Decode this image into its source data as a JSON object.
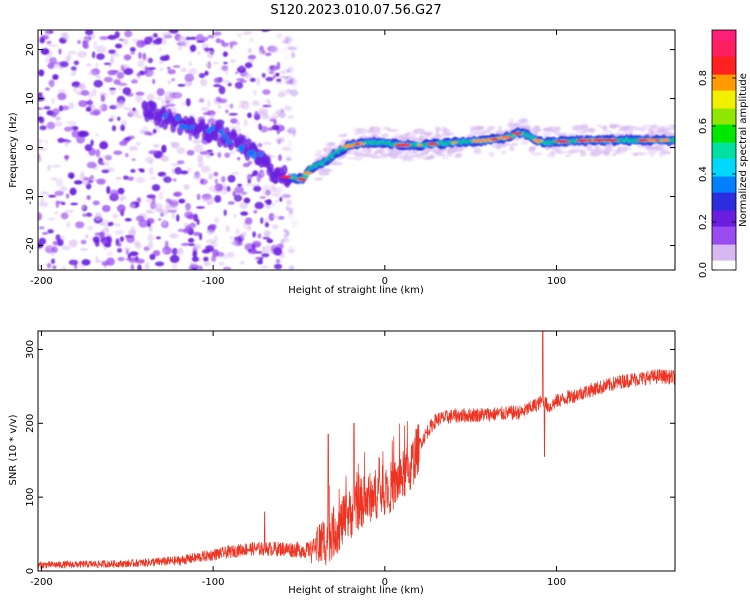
{
  "title": "S120.2023.010.07.56.G27",
  "colors": {
    "snr_line": "#ee3322",
    "colormap": [
      "#ffffff",
      "#d8b8f0",
      "#9a4cf0",
      "#6a1fe0",
      "#2d2de0",
      "#0080ff",
      "#00d8ff",
      "#00e0a0",
      "#00e800",
      "#90e800",
      "#f0f000",
      "#ff9a00",
      "#ff2020",
      "#ff2060",
      "#ff1e78"
    ]
  },
  "chart_data": [
    {
      "type": "heatmap",
      "xlabel": "Height of straight line (km)",
      "ylabel": "Frequency (Hz)",
      "xlim": [
        -202,
        169
      ],
      "ylim": [
        -25,
        24
      ],
      "xticks": [
        -200,
        -100,
        0,
        100
      ],
      "yticks": [
        -20,
        -10,
        0,
        10,
        20
      ],
      "colorbar": {
        "label": "Normalized spectral amplitude",
        "range": [
          0,
          1
        ],
        "ticks": [
          "0.0",
          "0.2",
          "0.4",
          "0.6",
          "0.8"
        ]
      },
      "ridge": {
        "x": [
          -200,
          -160,
          -135,
          -120,
          -100,
          -85,
          -70,
          -62,
          -55,
          -48,
          -42,
          -35,
          -28,
          -20,
          -10,
          0,
          10,
          20,
          40,
          60,
          70,
          75,
          78,
          82,
          86,
          90,
          95,
          100,
          120,
          140,
          169
        ],
        "y": [
          22,
          12,
          7,
          5,
          3,
          1,
          -3,
          -6,
          -6,
          -6.5,
          -4,
          -3,
          -1,
          0.5,
          1,
          1,
          0.5,
          0.5,
          1,
          1.5,
          2,
          2.5,
          3,
          2.8,
          2,
          1.2,
          1,
          1.2,
          1.5,
          1.5,
          1.5
        ]
      }
    },
    {
      "type": "line",
      "xlabel": "Height of straight line (km)",
      "ylabel": "SNR (10 * v/v)",
      "xlim": [
        -202,
        169
      ],
      "ylim": [
        0,
        325
      ],
      "xticks": [
        -200,
        -100,
        0,
        100
      ],
      "yticks": [
        0,
        100,
        200,
        300
      ],
      "trend": {
        "x": [
          -202,
          -150,
          -120,
          -100,
          -80,
          -60,
          -45,
          -35,
          -25,
          -15,
          -5,
          5,
          15,
          20,
          25,
          30,
          40,
          60,
          80,
          88,
          92,
          96,
          100,
          120,
          140,
          160,
          169
        ],
        "y": [
          8,
          10,
          14,
          22,
          30,
          30,
          28,
          40,
          65,
          90,
          105,
          115,
          140,
          170,
          190,
          205,
          210,
          212,
          215,
          225,
          230,
          222,
          230,
          245,
          258,
          264,
          262
        ]
      },
      "spikes": [
        {
          "x": -70,
          "y": 80
        },
        {
          "x": -33,
          "y": 185
        },
        {
          "x": -18,
          "y": 200
        },
        {
          "x": 92,
          "y": 325
        },
        {
          "x": 93,
          "y": 155
        }
      ]
    }
  ]
}
